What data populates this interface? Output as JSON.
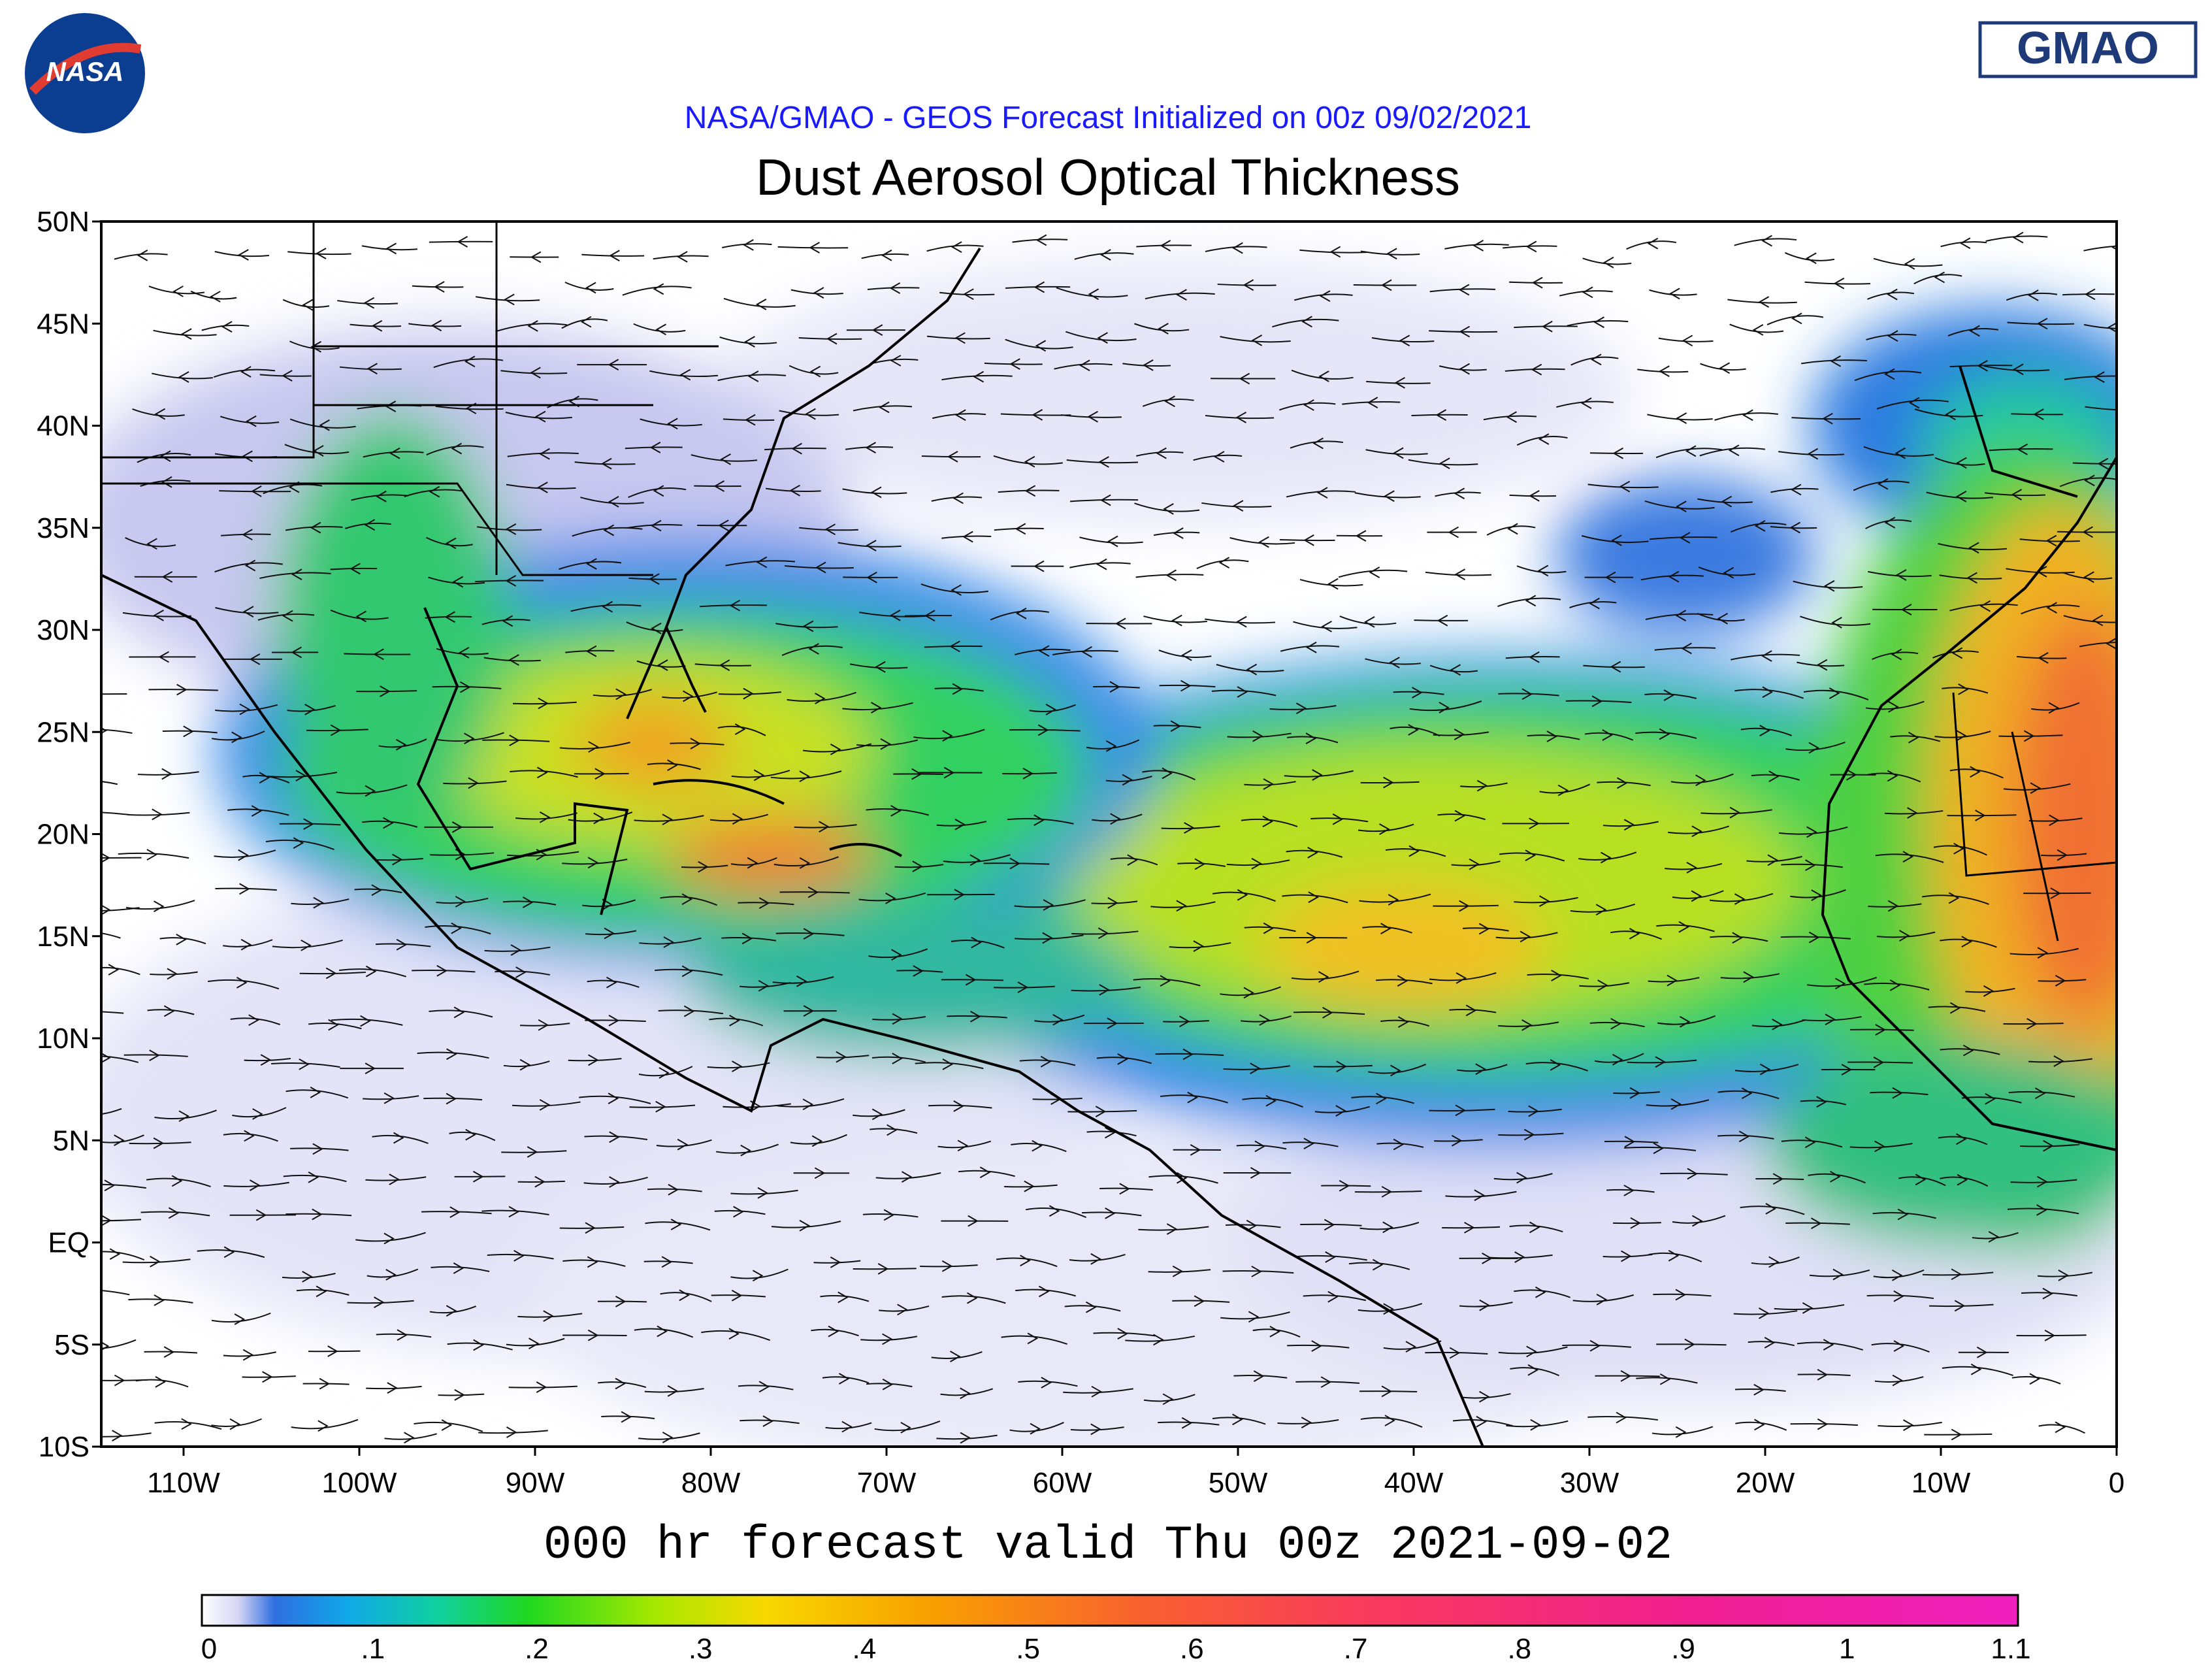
{
  "header": {
    "nasa_logo": "NASA",
    "gmao_logo": "GMAO",
    "subtitle": "NASA/GMAO - GEOS Forecast Initialized on 00z 09/02/2021",
    "title": "Dust Aerosol Optical Thickness"
  },
  "map": {
    "lat_labels": [
      "50N",
      "45N",
      "40N",
      "35N",
      "30N",
      "25N",
      "20N",
      "15N",
      "10N",
      "5N",
      "EQ",
      "5S",
      "10S"
    ],
    "lon_labels": [
      "110W",
      "100W",
      "90W",
      "80W",
      "70W",
      "60W",
      "50W",
      "40W",
      "30W",
      "20W",
      "10W",
      "0"
    ]
  },
  "footer": {
    "valid_time": "000 hr forecast valid Thu 00z 2021-09-02"
  },
  "colorbar": {
    "labels": [
      "0",
      ".1",
      ".2",
      ".3",
      ".4",
      ".5",
      ".6",
      ".7",
      ".8",
      ".9",
      "1",
      "1.1"
    ]
  }
}
